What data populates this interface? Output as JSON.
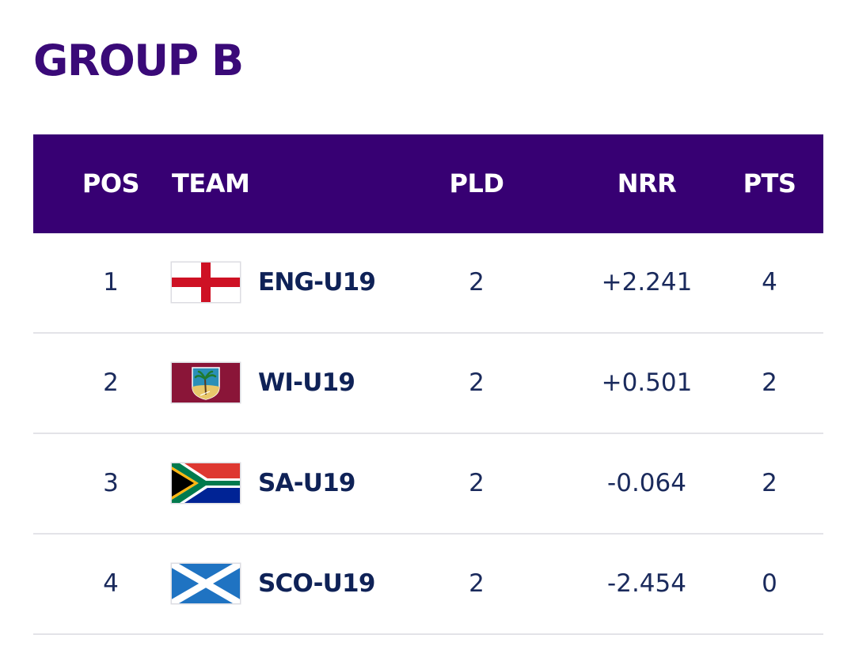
{
  "title": "GROUP B",
  "columns": {
    "pos": "POS",
    "team": "TEAM",
    "pld": "PLD",
    "nrr": "NRR",
    "pts": "PTS"
  },
  "rows": [
    {
      "pos": "1",
      "team": "ENG-U19",
      "flag": "england-flag-icon",
      "pld": "2",
      "nrr": "+2.241",
      "pts": "4"
    },
    {
      "pos": "2",
      "team": "WI-U19",
      "flag": "west-indies-flag-icon",
      "pld": "2",
      "nrr": "+0.501",
      "pts": "2"
    },
    {
      "pos": "3",
      "team": "SA-U19",
      "flag": "south-africa-flag-icon",
      "pld": "2",
      "nrr": "-0.064",
      "pts": "2"
    },
    {
      "pos": "4",
      "team": "SCO-U19",
      "flag": "scotland-flag-icon",
      "pld": "2",
      "nrr": "-2.454",
      "pts": "0"
    }
  ],
  "colors": {
    "title": "#3a0a78",
    "header_bg": "#370073",
    "header_text": "#ffffff",
    "team_text": "#0f2257",
    "cell_text": "#1a2a5c",
    "row_divider": "#e3e3e8"
  }
}
